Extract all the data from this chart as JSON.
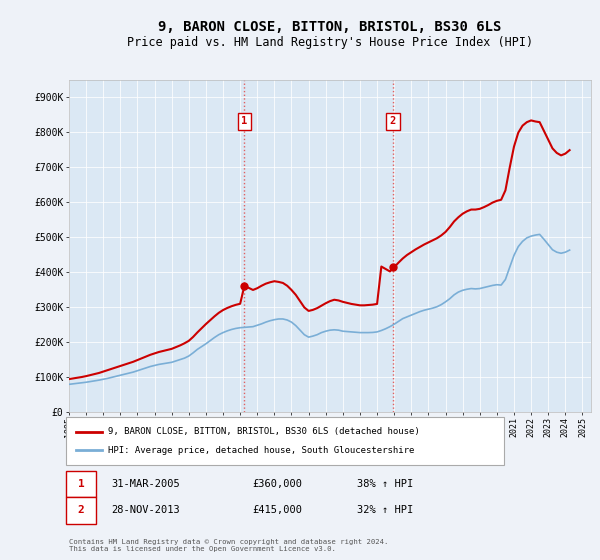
{
  "title": "9, BARON CLOSE, BITTON, BRISTOL, BS30 6LS",
  "subtitle": "Price paid vs. HM Land Registry's House Price Index (HPI)",
  "title_fontsize": 10,
  "subtitle_fontsize": 8.5,
  "background_color": "#eef2f8",
  "plot_bg_color": "#dbe8f4",
  "ytick_labels": [
    "£0",
    "£100K",
    "£200K",
    "£300K",
    "£400K",
    "£500K",
    "£600K",
    "£700K",
    "£800K",
    "£900K"
  ],
  "yticks": [
    0,
    100000,
    200000,
    300000,
    400000,
    500000,
    600000,
    700000,
    800000,
    900000
  ],
  "xlim_start": 1995.0,
  "xlim_end": 2025.5,
  "ylim": [
    0,
    950000
  ],
  "hpi_line_color": "#7aaed6",
  "price_line_color": "#cc0000",
  "transaction1_x": 2005.25,
  "transaction1_y": 360000,
  "transaction2_x": 2013.92,
  "transaction2_y": 415000,
  "vline_color": "#e06060",
  "vline_style": ":",
  "legend_label1": "9, BARON CLOSE, BITTON, BRISTOL, BS30 6LS (detached house)",
  "legend_label2": "HPI: Average price, detached house, South Gloucestershire",
  "table_row1": [
    "1",
    "31-MAR-2005",
    "£360,000",
    "38% ↑ HPI"
  ],
  "table_row2": [
    "2",
    "28-NOV-2013",
    "£415,000",
    "32% ↑ HPI"
  ],
  "footnote": "Contains HM Land Registry data © Crown copyright and database right 2024.\nThis data is licensed under the Open Government Licence v3.0.",
  "hpi_data_x": [
    1995.0,
    1995.25,
    1995.5,
    1995.75,
    1996.0,
    1996.25,
    1996.5,
    1996.75,
    1997.0,
    1997.25,
    1997.5,
    1997.75,
    1998.0,
    1998.25,
    1998.5,
    1998.75,
    1999.0,
    1999.25,
    1999.5,
    1999.75,
    2000.0,
    2000.25,
    2000.5,
    2000.75,
    2001.0,
    2001.25,
    2001.5,
    2001.75,
    2002.0,
    2002.25,
    2002.5,
    2002.75,
    2003.0,
    2003.25,
    2003.5,
    2003.75,
    2004.0,
    2004.25,
    2004.5,
    2004.75,
    2005.0,
    2005.25,
    2005.5,
    2005.75,
    2006.0,
    2006.25,
    2006.5,
    2006.75,
    2007.0,
    2007.25,
    2007.5,
    2007.75,
    2008.0,
    2008.25,
    2008.5,
    2008.75,
    2009.0,
    2009.25,
    2009.5,
    2009.75,
    2010.0,
    2010.25,
    2010.5,
    2010.75,
    2011.0,
    2011.25,
    2011.5,
    2011.75,
    2012.0,
    2012.25,
    2012.5,
    2012.75,
    2013.0,
    2013.25,
    2013.5,
    2013.75,
    2014.0,
    2014.25,
    2014.5,
    2014.75,
    2015.0,
    2015.25,
    2015.5,
    2015.75,
    2016.0,
    2016.25,
    2016.5,
    2016.75,
    2017.0,
    2017.25,
    2017.5,
    2017.75,
    2018.0,
    2018.25,
    2018.5,
    2018.75,
    2019.0,
    2019.25,
    2019.5,
    2019.75,
    2020.0,
    2020.25,
    2020.5,
    2020.75,
    2021.0,
    2021.25,
    2021.5,
    2021.75,
    2022.0,
    2022.25,
    2022.5,
    2022.75,
    2023.0,
    2023.25,
    2023.5,
    2023.75,
    2024.0,
    2024.25
  ],
  "hpi_data_y": [
    78000,
    79500,
    81000,
    82500,
    84000,
    86000,
    88000,
    90000,
    92500,
    95000,
    98000,
    101000,
    104000,
    107000,
    110000,
    113000,
    117000,
    121000,
    125000,
    129000,
    132000,
    135000,
    137000,
    139000,
    141000,
    145000,
    149000,
    153000,
    159000,
    168000,
    178000,
    186000,
    194000,
    203000,
    212000,
    220000,
    226000,
    231000,
    235000,
    238000,
    240000,
    241000,
    242000,
    243000,
    247000,
    251000,
    256000,
    260000,
    263000,
    265000,
    265000,
    262000,
    256000,
    246000,
    233000,
    220000,
    213000,
    216000,
    220000,
    226000,
    230000,
    233000,
    234000,
    233000,
    230000,
    229000,
    228000,
    227000,
    226000,
    226000,
    226000,
    226500,
    228000,
    232000,
    237000,
    243000,
    250000,
    258000,
    266000,
    271000,
    276000,
    281000,
    286000,
    290000,
    293000,
    296000,
    300000,
    306000,
    314000,
    323000,
    334000,
    342000,
    347000,
    350000,
    352000,
    351000,
    352000,
    355000,
    358000,
    361000,
    363000,
    362000,
    378000,
    413000,
    447000,
    472000,
    487000,
    497000,
    502000,
    505000,
    507000,
    493000,
    478000,
    463000,
    456000,
    453000,
    456000,
    462000
  ],
  "price_data_x": [
    1995.0,
    1995.25,
    1995.5,
    1995.75,
    1996.0,
    1996.25,
    1996.5,
    1996.75,
    1997.0,
    1997.25,
    1997.5,
    1997.75,
    1998.0,
    1998.25,
    1998.5,
    1998.75,
    1999.0,
    1999.25,
    1999.5,
    1999.75,
    2000.0,
    2000.25,
    2000.5,
    2000.75,
    2001.0,
    2001.25,
    2001.5,
    2001.75,
    2002.0,
    2002.25,
    2002.5,
    2002.75,
    2003.0,
    2003.25,
    2003.5,
    2003.75,
    2004.0,
    2004.25,
    2004.5,
    2004.75,
    2005.0,
    2005.25,
    2005.5,
    2005.75,
    2006.0,
    2006.25,
    2006.5,
    2006.75,
    2007.0,
    2007.25,
    2007.5,
    2007.75,
    2008.0,
    2008.25,
    2008.5,
    2008.75,
    2009.0,
    2009.25,
    2009.5,
    2009.75,
    2010.0,
    2010.25,
    2010.5,
    2010.75,
    2011.0,
    2011.25,
    2011.5,
    2011.75,
    2012.0,
    2012.25,
    2012.5,
    2012.75,
    2013.0,
    2013.25,
    2013.5,
    2013.75,
    2014.0,
    2014.25,
    2014.5,
    2014.75,
    2015.0,
    2015.25,
    2015.5,
    2015.75,
    2016.0,
    2016.25,
    2016.5,
    2016.75,
    2017.0,
    2017.25,
    2017.5,
    2017.75,
    2018.0,
    2018.25,
    2018.5,
    2018.75,
    2019.0,
    2019.25,
    2019.5,
    2019.75,
    2020.0,
    2020.25,
    2020.5,
    2020.75,
    2021.0,
    2021.25,
    2021.5,
    2021.75,
    2022.0,
    2022.25,
    2022.5,
    2022.75,
    2023.0,
    2023.25,
    2023.5,
    2023.75,
    2024.0,
    2024.25
  ],
  "price_data_y": [
    93000,
    95000,
    97000,
    99000,
    101500,
    104500,
    107500,
    110500,
    114500,
    118500,
    122500,
    126500,
    130500,
    134500,
    138500,
    142500,
    147500,
    152500,
    157500,
    162500,
    166500,
    170500,
    173500,
    176500,
    179500,
    184500,
    189500,
    195500,
    202500,
    213500,
    226500,
    238500,
    250500,
    261500,
    272500,
    282500,
    290500,
    296500,
    301500,
    305500,
    308500,
    360000,
    354000,
    348000,
    353000,
    360000,
    366000,
    370000,
    373000,
    371000,
    368000,
    360000,
    348000,
    334000,
    316000,
    298000,
    288000,
    291000,
    296000,
    303000,
    310000,
    316000,
    320000,
    318000,
    314000,
    311000,
    308000,
    306000,
    304000,
    304000,
    305000,
    306000,
    308000,
    415000,
    408000,
    401000,
    413000,
    426000,
    438000,
    448000,
    456000,
    464000,
    471000,
    478000,
    484000,
    490000,
    496000,
    504000,
    514000,
    528000,
    544000,
    556000,
    566000,
    573000,
    578000,
    578000,
    580000,
    585000,
    591000,
    598000,
    603000,
    606000,
    633000,
    698000,
    758000,
    798000,
    818000,
    828000,
    833000,
    830000,
    828000,
    803000,
    778000,
    753000,
    740000,
    733000,
    738000,
    748000
  ]
}
